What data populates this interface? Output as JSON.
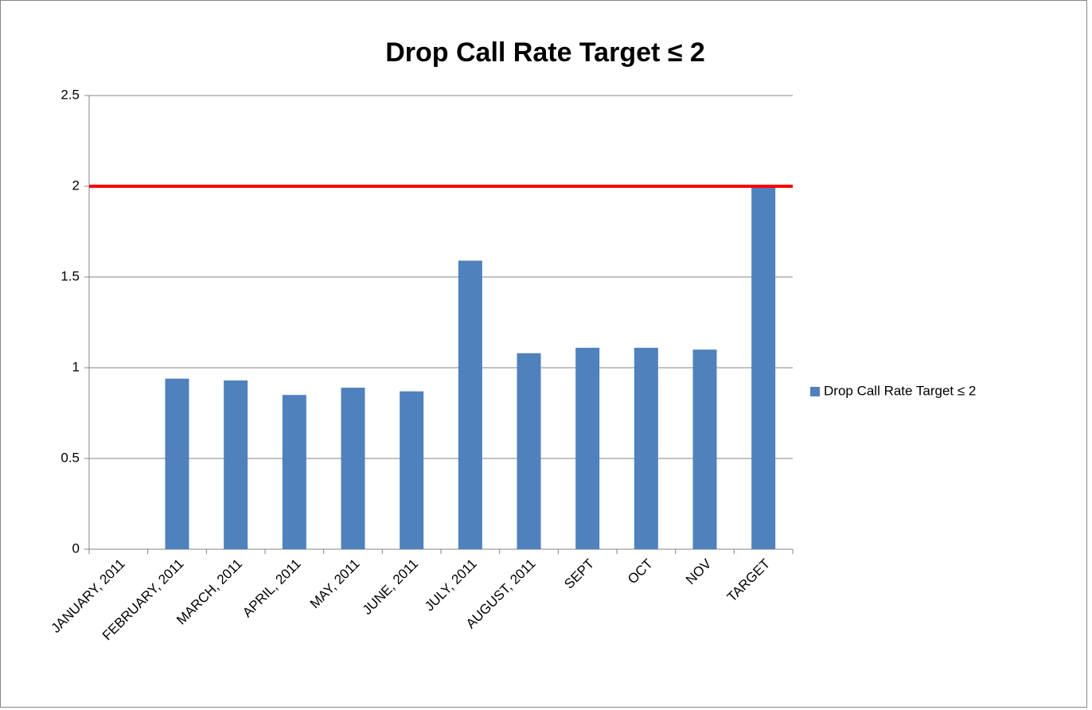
{
  "chart_data": {
    "type": "bar",
    "title": "Drop Call Rate Target ≤ 2",
    "categories": [
      "JANUARY, 2011",
      "FEBRUARY, 2011",
      "MARCH, 2011",
      "APRIL, 2011",
      "MAY, 2011",
      "JUNE, 2011",
      "JULY, 2011",
      "AUGUST, 2011",
      "SEPT",
      "OCT",
      "NOV",
      "TARGET"
    ],
    "series": [
      {
        "name": "Drop Call Rate Target ≤ 2",
        "color": "#4f81bd",
        "values": [
          null,
          0.94,
          0.93,
          0.85,
          0.89,
          0.87,
          1.59,
          1.08,
          1.11,
          1.11,
          1.1,
          2
        ]
      }
    ],
    "ylim": [
      0,
      2.5
    ],
    "yticks": [
      0,
      0.5,
      1,
      1.5,
      2,
      2.5
    ],
    "grid": true,
    "reference_line": {
      "value": 2,
      "color": "#ff0000"
    },
    "legend": "right"
  }
}
